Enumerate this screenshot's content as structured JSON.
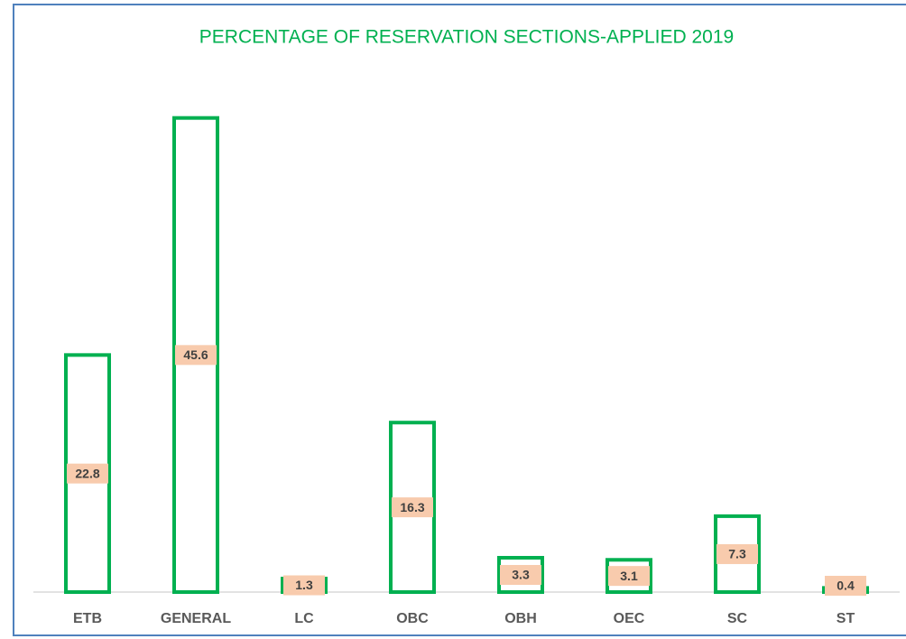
{
  "chart_data": {
    "type": "bar",
    "title": "PERCENTAGE OF RESERVATION SECTIONS-APPLIED 2019",
    "categories": [
      "ETB",
      "GENERAL",
      "LC",
      "OBC",
      "OBH",
      "OEC",
      "SC",
      "ST"
    ],
    "values": [
      22.8,
      45.6,
      1.3,
      16.3,
      3.3,
      3.1,
      7.3,
      0.4
    ],
    "color": "#00b050",
    "label_color": "#f8cbad",
    "ylim": [
      0,
      50
    ],
    "grid": false
  }
}
